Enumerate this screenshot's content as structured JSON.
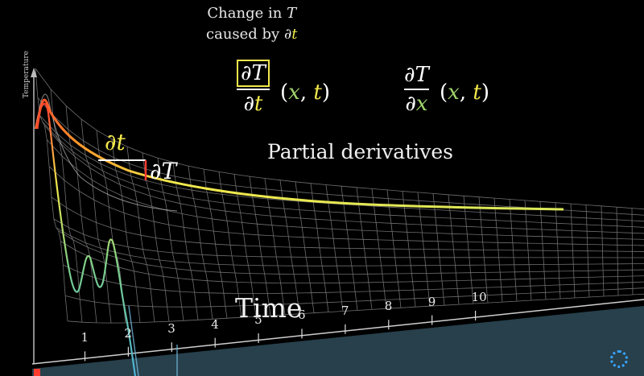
{
  "annotation": {
    "line1_prefix": "Change in ",
    "line1_var": "T",
    "line2_prefix": "caused by ",
    "line2_partial": "∂",
    "line2_var": "t"
  },
  "equations": {
    "dT_dt": {
      "numerator": "∂T",
      "denominator_partial": "∂",
      "denominator_var": "t",
      "args_open": "(",
      "arg1": "x",
      "comma": ", ",
      "arg2": "t",
      "args_close": ")"
    },
    "dT_dx": {
      "numerator": "∂T",
      "denominator_partial": "∂",
      "denominator_var": "x",
      "args_open": "(",
      "arg1": "x",
      "comma": ", ",
      "arg2": "t",
      "args_close": ")"
    }
  },
  "labels": {
    "partial_derivatives": "Partial derivatives",
    "dt": "∂t",
    "dT": "∂T",
    "time_axis": "Time",
    "temperature_axis": "Temperature"
  },
  "time_ticks": [
    "1",
    "2",
    "3",
    "4",
    "5",
    "6",
    "7",
    "8",
    "9",
    "10"
  ],
  "colors": {
    "yellow": "#f2e84b",
    "green": "#9fd36a",
    "red": "#ff3b30",
    "mesh": "#c8c8c8",
    "floor": "#6fb6d8"
  }
}
